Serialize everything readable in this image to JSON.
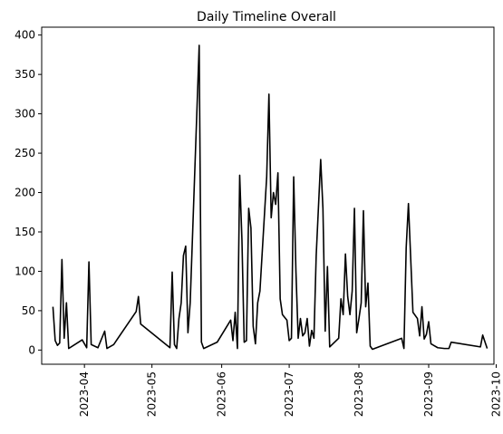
{
  "chart_data": {
    "type": "line",
    "title": "Daily Timeline Overall",
    "xlabel": "",
    "ylabel": "",
    "line_color": "#000000",
    "grid": false,
    "legend": "none",
    "x_axis_kind": "date",
    "xlim": [
      "2023-03-13",
      "2023-09-30"
    ],
    "ylim": [
      -18,
      410
    ],
    "x_ticks": [
      "2023-04-01",
      "2023-05-01",
      "2023-06-01",
      "2023-07-01",
      "2023-08-01",
      "2023-09-01",
      "2023-10-01"
    ],
    "x_tick_labels": [
      "2023-04",
      "2023-05",
      "2023-06",
      "2023-07",
      "2023-08",
      "2023-09",
      "2023-10"
    ],
    "y_ticks": [
      0,
      50,
      100,
      150,
      200,
      250,
      300,
      350,
      400
    ],
    "y_tick_labels": [
      "0",
      "50",
      "100",
      "150",
      "200",
      "250",
      "300",
      "350",
      "400"
    ],
    "points": [
      [
        "2023-03-18",
        55
      ],
      [
        "2023-03-19",
        12
      ],
      [
        "2023-03-20",
        6
      ],
      [
        "2023-03-21",
        9
      ],
      [
        "2023-03-22",
        115
      ],
      [
        "2023-03-23",
        15
      ],
      [
        "2023-03-24",
        60
      ],
      [
        "2023-03-25",
        2
      ],
      [
        "2023-03-31",
        13
      ],
      [
        "2023-04-02",
        3
      ],
      [
        "2023-04-03",
        112
      ],
      [
        "2023-04-04",
        7
      ],
      [
        "2023-04-07",
        3
      ],
      [
        "2023-04-10",
        24
      ],
      [
        "2023-04-11",
        2
      ],
      [
        "2023-04-14",
        7
      ],
      [
        "2023-04-24",
        49
      ],
      [
        "2023-04-25",
        68
      ],
      [
        "2023-04-26",
        33
      ],
      [
        "2023-05-09",
        3
      ],
      [
        "2023-05-10",
        99
      ],
      [
        "2023-05-11",
        7
      ],
      [
        "2023-05-12",
        2
      ],
      [
        "2023-05-13",
        40
      ],
      [
        "2023-05-14",
        60
      ],
      [
        "2023-05-15",
        120
      ],
      [
        "2023-05-16",
        132
      ],
      [
        "2023-05-17",
        22
      ],
      [
        "2023-05-18",
        60
      ],
      [
        "2023-05-22",
        387
      ],
      [
        "2023-05-23",
        10
      ],
      [
        "2023-05-24",
        2
      ],
      [
        "2023-05-30",
        10
      ],
      [
        "2023-06-05",
        38
      ],
      [
        "2023-06-06",
        12
      ],
      [
        "2023-06-07",
        48
      ],
      [
        "2023-06-08",
        2
      ],
      [
        "2023-06-09",
        222
      ],
      [
        "2023-06-10",
        140
      ],
      [
        "2023-06-11",
        10
      ],
      [
        "2023-06-12",
        12
      ],
      [
        "2023-06-13",
        180
      ],
      [
        "2023-06-14",
        155
      ],
      [
        "2023-06-15",
        30
      ],
      [
        "2023-06-16",
        8
      ],
      [
        "2023-06-17",
        60
      ],
      [
        "2023-06-18",
        75
      ],
      [
        "2023-06-21",
        220
      ],
      [
        "2023-06-22",
        325
      ],
      [
        "2023-06-23",
        168
      ],
      [
        "2023-06-24",
        200
      ],
      [
        "2023-06-25",
        185
      ],
      [
        "2023-06-26",
        225
      ],
      [
        "2023-06-27",
        65
      ],
      [
        "2023-06-28",
        45
      ],
      [
        "2023-06-30",
        38
      ],
      [
        "2023-07-01",
        12
      ],
      [
        "2023-07-02",
        15
      ],
      [
        "2023-07-03",
        220
      ],
      [
        "2023-07-04",
        100
      ],
      [
        "2023-07-05",
        15
      ],
      [
        "2023-07-06",
        40
      ],
      [
        "2023-07-07",
        18
      ],
      [
        "2023-07-08",
        22
      ],
      [
        "2023-07-09",
        40
      ],
      [
        "2023-07-10",
        5
      ],
      [
        "2023-07-11",
        25
      ],
      [
        "2023-07-12",
        15
      ],
      [
        "2023-07-13",
        120
      ],
      [
        "2023-07-15",
        242
      ],
      [
        "2023-07-16",
        180
      ],
      [
        "2023-07-17",
        24
      ],
      [
        "2023-07-18",
        106
      ],
      [
        "2023-07-19",
        4
      ],
      [
        "2023-07-23",
        15
      ],
      [
        "2023-07-24",
        65
      ],
      [
        "2023-07-25",
        45
      ],
      [
        "2023-07-26",
        122
      ],
      [
        "2023-07-27",
        68
      ],
      [
        "2023-07-28",
        45
      ],
      [
        "2023-07-29",
        75
      ],
      [
        "2023-07-30",
        180
      ],
      [
        "2023-07-31",
        22
      ],
      [
        "2023-08-01",
        40
      ],
      [
        "2023-08-02",
        60
      ],
      [
        "2023-08-03",
        177
      ],
      [
        "2023-08-04",
        55
      ],
      [
        "2023-08-05",
        85
      ],
      [
        "2023-08-06",
        5
      ],
      [
        "2023-08-07",
        1
      ],
      [
        "2023-08-20",
        15
      ],
      [
        "2023-08-21",
        2
      ],
      [
        "2023-08-22",
        130
      ],
      [
        "2023-08-23",
        186
      ],
      [
        "2023-08-25",
        48
      ],
      [
        "2023-08-27",
        40
      ],
      [
        "2023-08-28",
        18
      ],
      [
        "2023-08-29",
        55
      ],
      [
        "2023-08-30",
        14
      ],
      [
        "2023-08-31",
        20
      ],
      [
        "2023-09-01",
        36
      ],
      [
        "2023-09-02",
        8
      ],
      [
        "2023-09-05",
        3
      ],
      [
        "2023-09-08",
        2
      ],
      [
        "2023-09-10",
        2
      ],
      [
        "2023-09-11",
        10
      ],
      [
        "2023-09-24",
        4
      ],
      [
        "2023-09-25",
        19
      ],
      [
        "2023-09-27",
        2
      ]
    ]
  }
}
